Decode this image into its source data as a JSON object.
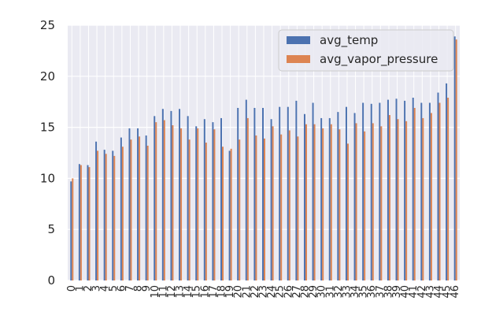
{
  "chart_data": {
    "type": "bar",
    "title": "",
    "xlabel": "",
    "ylabel": "",
    "ylim": [
      0,
      25
    ],
    "yticks": [
      0,
      5,
      10,
      15,
      20,
      25
    ],
    "grid": true,
    "legend_position": "top-right",
    "categories": [
      "0",
      "1",
      "2",
      "3",
      "4",
      "5",
      "6",
      "7",
      "8",
      "9",
      "10",
      "11",
      "12",
      "13",
      "14",
      "15",
      "16",
      "17",
      "18",
      "19",
      "20",
      "21",
      "22",
      "23",
      "24",
      "25",
      "26",
      "27",
      "28",
      "29",
      "30",
      "31",
      "32",
      "33",
      "34",
      "35",
      "36",
      "37",
      "38",
      "39",
      "40",
      "41",
      "42",
      "43",
      "44",
      "45",
      "46"
    ],
    "series": [
      {
        "name": "avg_temp",
        "color": "#4c72b0",
        "values": [
          9.7,
          11.4,
          11.3,
          13.6,
          12.8,
          12.7,
          14.0,
          14.9,
          14.9,
          14.2,
          16.1,
          16.8,
          16.6,
          16.8,
          16.1,
          15.1,
          15.8,
          15.5,
          15.9,
          12.7,
          16.9,
          17.7,
          16.9,
          16.9,
          15.8,
          17.0,
          17.0,
          17.6,
          16.3,
          17.4,
          15.9,
          15.9,
          16.5,
          17.0,
          16.4,
          17.4,
          17.3,
          17.4,
          17.7,
          17.8,
          17.6,
          17.9,
          17.4,
          17.4,
          18.4,
          19.3,
          23.9
        ]
      },
      {
        "name": "avg_vapor_pressure",
        "color": "#dd8452",
        "values": [
          10.0,
          11.3,
          11.1,
          12.7,
          12.4,
          12.2,
          13.1,
          13.8,
          14.1,
          13.2,
          15.5,
          15.7,
          15.2,
          14.9,
          13.8,
          14.9,
          13.5,
          14.8,
          13.1,
          12.9,
          13.8,
          15.9,
          14.2,
          13.9,
          15.1,
          14.3,
          14.7,
          14.1,
          15.3,
          15.3,
          14.9,
          15.3,
          14.8,
          13.4,
          15.4,
          14.6,
          15.4,
          15.1,
          16.2,
          15.8,
          15.6,
          16.9,
          15.9,
          16.4,
          17.4,
          17.9,
          23.6
        ]
      }
    ]
  }
}
